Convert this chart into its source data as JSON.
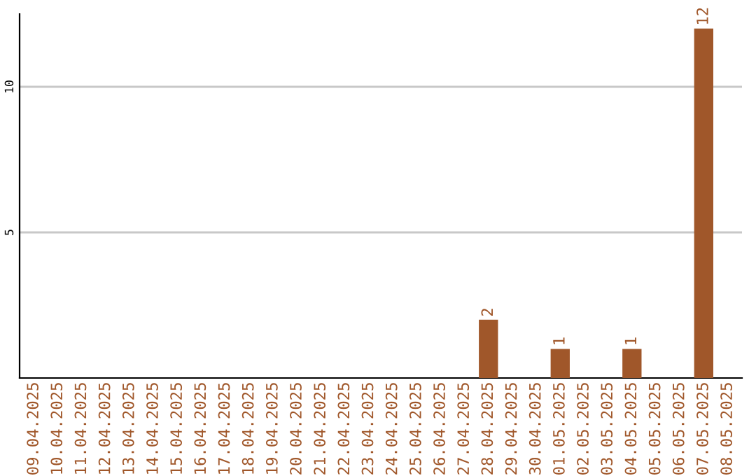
{
  "chart_data": {
    "type": "bar",
    "categories": [
      "09.04.2025",
      "10.04.2025",
      "11.04.2025",
      "12.04.2025",
      "13.04.2025",
      "14.04.2025",
      "15.04.2025",
      "16.04.2025",
      "17.04.2025",
      "18.04.2025",
      "19.04.2025",
      "20.04.2025",
      "21.04.2025",
      "22.04.2025",
      "23.04.2025",
      "24.04.2025",
      "25.04.2025",
      "26.04.2025",
      "27.04.2025",
      "28.04.2025",
      "29.04.2025",
      "30.04.2025",
      "01.05.2025",
      "02.05.2025",
      "03.05.2025",
      "04.05.2025",
      "05.05.2025",
      "06.05.2025",
      "07.05.2025",
      "08.05.2025"
    ],
    "values": [
      0,
      0,
      0,
      0,
      0,
      0,
      0,
      0,
      0,
      0,
      0,
      0,
      0,
      0,
      0,
      0,
      0,
      0,
      0,
      2,
      0,
      0,
      1,
      0,
      0,
      1,
      0,
      0,
      12,
      0
    ],
    "value_labels": [
      null,
      null,
      null,
      null,
      null,
      null,
      null,
      null,
      null,
      null,
      null,
      null,
      null,
      null,
      null,
      null,
      null,
      null,
      null,
      "2",
      null,
      null,
      "1",
      null,
      null,
      "1",
      null,
      null,
      "12",
      null
    ],
    "color": "#a0572a",
    "ylim": [
      0,
      12.5
    ],
    "yticks": [
      5,
      10
    ],
    "grid": "y"
  }
}
